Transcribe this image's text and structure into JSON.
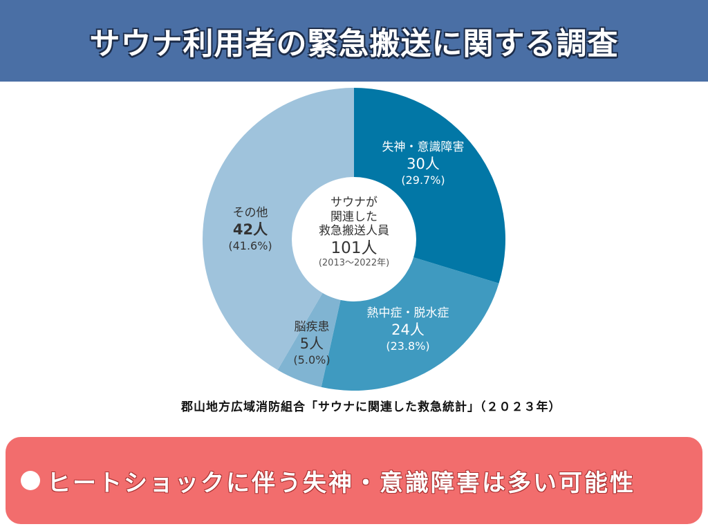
{
  "header": {
    "title": "サウナ利用者の緊急搬送に関する調査"
  },
  "chart_data": {
    "type": "pie",
    "title": "サウナが関連した救急搬送人員",
    "center": {
      "line1": "サウナが",
      "line2": "関連した",
      "line3": "救急搬送人員",
      "total": "101人",
      "period": "(2013〜2022年)"
    },
    "slices": [
      {
        "name": "失神・意識障害",
        "value": 30,
        "count_label": "30人",
        "percent_label": "(29.7%)",
        "color": "#0277a6"
      },
      {
        "name": "熱中症・脱水症",
        "value": 24,
        "count_label": "24人",
        "percent_label": "(23.8%)",
        "color": "#3f9ac0"
      },
      {
        "name": "脳疾患",
        "value": 5,
        "count_label": "5人",
        "percent_label": "(5.0%)",
        "color": "#80b4d2"
      },
      {
        "name": "その他",
        "value": 42,
        "count_label": "42人",
        "percent_label": "(41.6%)",
        "color": "#9fc3dc"
      }
    ]
  },
  "source": "郡山地方広域消防組合「サウナに関連した救急統計」（２０２３年）",
  "banner": {
    "text": "ヒートショックに伴う失神・意識障害は多い可能性"
  }
}
